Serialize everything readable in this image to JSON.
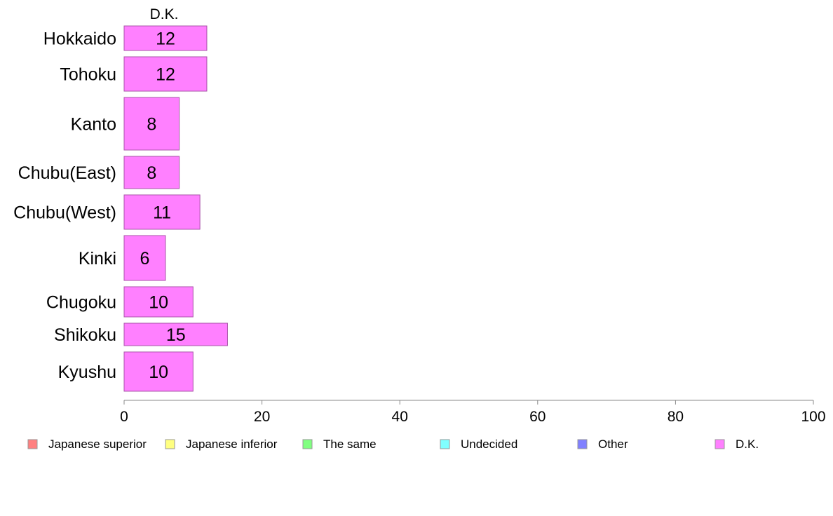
{
  "chart_data": {
    "type": "bar",
    "orientation": "horizontal",
    "stacked": true,
    "series_title": "D.K.",
    "categories": [
      "Hokkaido",
      "Tohoku",
      "Kanto",
      "Chubu(East)",
      "Chubu(West)",
      "Kinki",
      "Chugoku",
      "Shikoku",
      "Kyushu"
    ],
    "series": [
      {
        "name": "D.K.",
        "color": "#ff80ff",
        "values": [
          12,
          12,
          8,
          8,
          11,
          6,
          10,
          15,
          10
        ]
      }
    ],
    "data_labels": [
      "12",
      "12",
      "8",
      "8",
      "11",
      "6",
      "10",
      "15",
      "10"
    ],
    "xlim": [
      0,
      100
    ],
    "x_ticks": [
      0,
      20,
      40,
      60,
      80,
      100
    ],
    "grid": false,
    "legend_position": "bottom",
    "legend": [
      {
        "label": "Japanese superior",
        "color": "#ff8080"
      },
      {
        "label": "Japanese inferior",
        "color": "#ffff80"
      },
      {
        "label": "The same",
        "color": "#80ff80"
      },
      {
        "label": "Undecided",
        "color": "#80ffff"
      },
      {
        "label": "Other",
        "color": "#8080ff"
      },
      {
        "label": "D.K.",
        "color": "#ff80ff"
      }
    ]
  }
}
